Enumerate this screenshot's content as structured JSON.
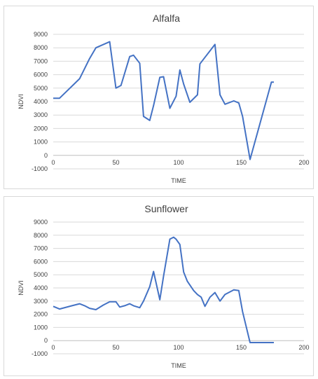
{
  "chart_data": [
    {
      "type": "line",
      "title": "Alfalfa",
      "xlabel": "TIME",
      "ylabel": "NDVI",
      "xlim": [
        0,
        200
      ],
      "ylim": [
        -1000,
        9000
      ],
      "xticks": [
        0,
        50,
        100,
        150,
        200
      ],
      "yticks": [
        -1000,
        0,
        1000,
        2000,
        3000,
        4000,
        5000,
        6000,
        7000,
        8000,
        9000
      ],
      "grid": "horizontal",
      "color": "#4472c4",
      "x": [
        0,
        5,
        21,
        29,
        34,
        45,
        50,
        54,
        61,
        64,
        69,
        72,
        77,
        80,
        85,
        88,
        93,
        98,
        101,
        104,
        109,
        115,
        117,
        129,
        133,
        137,
        144,
        148,
        151,
        157,
        174,
        176
      ],
      "y": [
        4250,
        4250,
        5700,
        7200,
        8000,
        8450,
        5000,
        5200,
        7350,
        7450,
        6850,
        2900,
        2600,
        3700,
        5800,
        5850,
        3500,
        4400,
        6350,
        5300,
        3950,
        4500,
        6800,
        8250,
        4500,
        3800,
        4050,
        3900,
        2900,
        -300,
        5450,
        5450
      ]
    },
    {
      "type": "line",
      "title": "Sunflower",
      "xlabel": "TIME",
      "ylabel": "NDVI",
      "xlim": [
        0,
        200
      ],
      "ylim": [
        -1000,
        9000
      ],
      "xticks": [
        0,
        50,
        100,
        150,
        200
      ],
      "yticks": [
        -1000,
        0,
        1000,
        2000,
        3000,
        4000,
        5000,
        6000,
        7000,
        8000,
        9000
      ],
      "grid": "horizontal",
      "color": "#4472c4",
      "x": [
        0,
        5,
        15,
        21,
        25,
        29,
        34,
        40,
        45,
        50,
        53,
        57,
        61,
        64,
        69,
        72,
        77,
        80,
        85,
        88,
        93,
        96,
        98,
        101,
        104,
        107,
        112,
        115,
        118,
        121,
        125,
        129,
        133,
        137,
        144,
        148,
        151,
        157,
        176
      ],
      "y": [
        2600,
        2400,
        2650,
        2800,
        2650,
        2450,
        2350,
        2700,
        2950,
        2950,
        2550,
        2650,
        2800,
        2650,
        2500,
        3000,
        4100,
        5250,
        3100,
        4900,
        7700,
        7850,
        7700,
        7300,
        5200,
        4500,
        3800,
        3500,
        3300,
        2600,
        3300,
        3650,
        3000,
        3500,
        3850,
        3800,
        2200,
        -150,
        -150
      ]
    }
  ]
}
